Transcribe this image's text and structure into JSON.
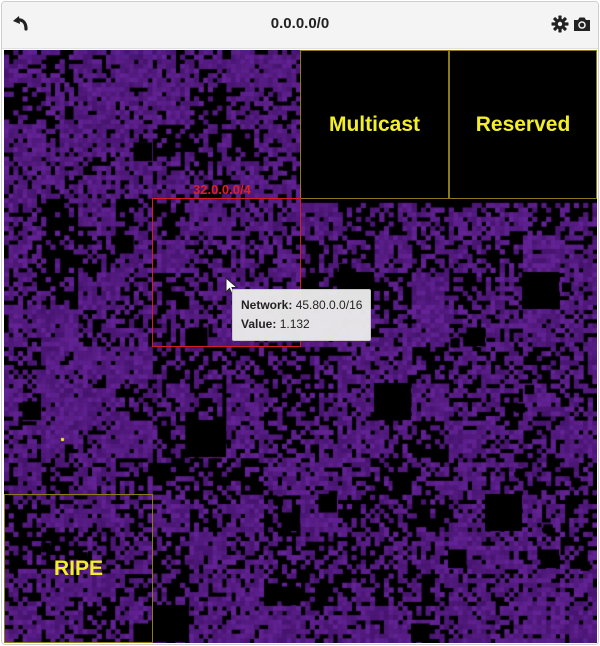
{
  "toolbar": {
    "title": "0.0.0.0/0",
    "icons": [
      "undo-icon",
      "gear-icon",
      "camera-icon"
    ]
  },
  "regions": {
    "multicast": "Multicast",
    "reserved": "Reserved",
    "ripe": "RIPE"
  },
  "selection": {
    "label": "32.0.0.0/4"
  },
  "tooltip": {
    "network_label": "Network:",
    "network_value": "45.80.0.0/16",
    "value_label": "Value:",
    "value_value": "1.132"
  },
  "colors": {
    "block_fill": "#5a1f82",
    "region_text": "#f2ee2a",
    "selection_border": "#d02020"
  }
}
